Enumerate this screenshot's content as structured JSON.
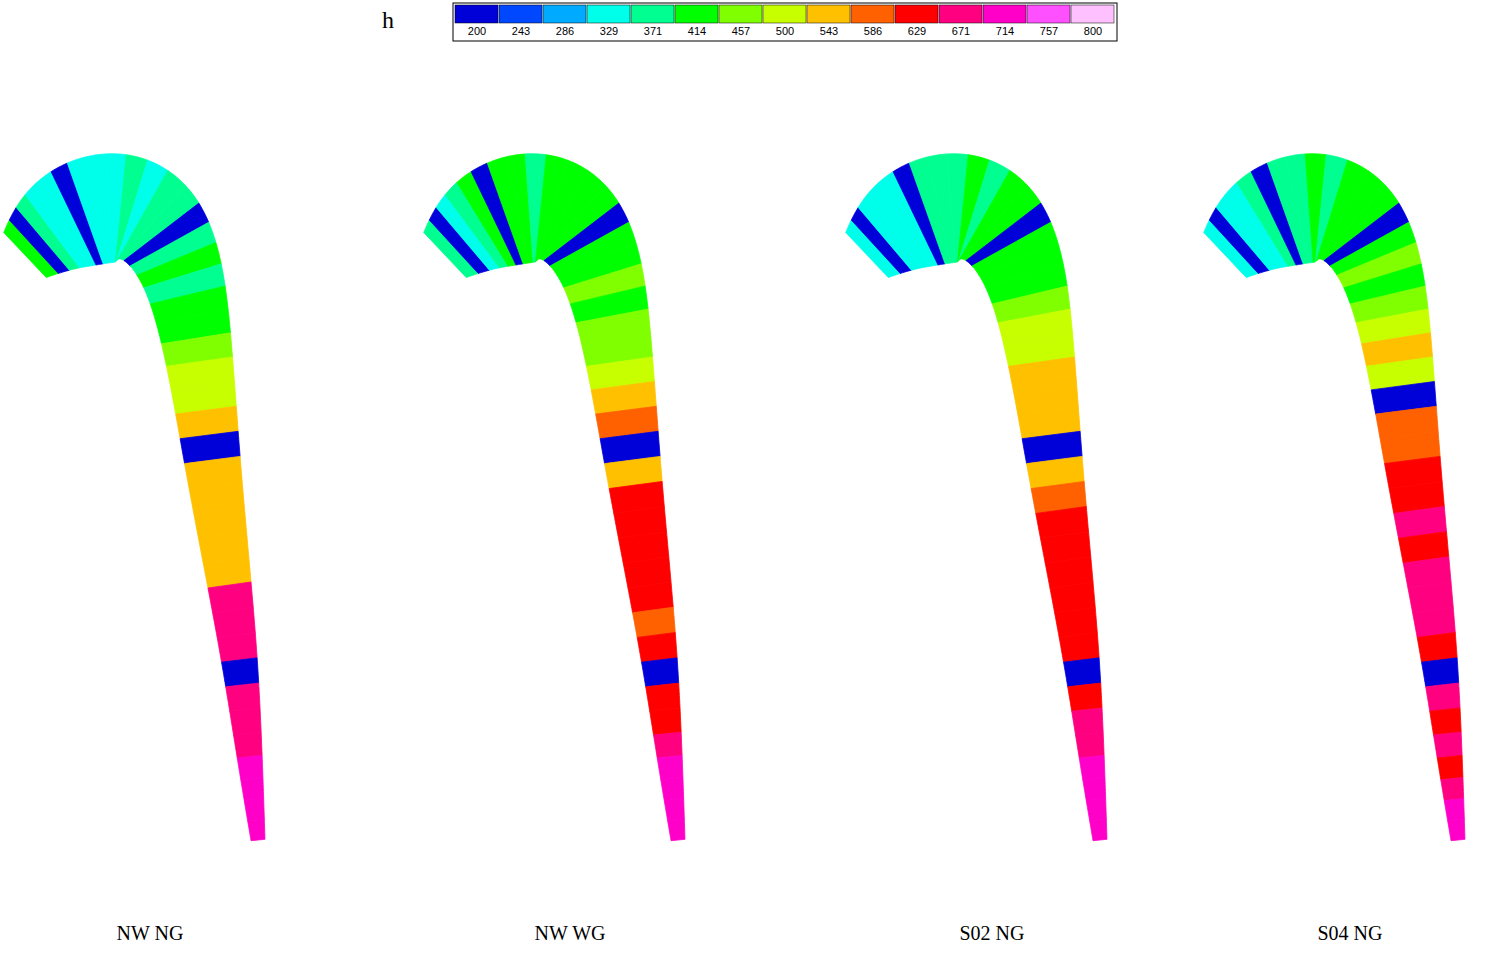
{
  "chart_data": {
    "type": "heatmap",
    "tick_labels": false,
    "colorbar": {
      "title": "h",
      "range": [
        200,
        800
      ],
      "ticks": [
        200,
        243,
        286,
        329,
        371,
        414,
        457,
        500,
        543,
        586,
        629,
        671,
        714,
        757,
        800
      ],
      "colors": [
        "#0000d8",
        "#0048ff",
        "#00aaff",
        "#00ffea",
        "#00ff90",
        "#00ff00",
        "#80ff00",
        "#c8ff00",
        "#ffc000",
        "#ff6000",
        "#ff0000",
        "#ff0080",
        "#ff00c8",
        "#ff50ff",
        "#ffc0ff"
      ]
    },
    "panels": [
      {
        "label": "NW NG",
        "values": [
          414,
          200,
          371,
          329,
          329,
          200,
          329,
          329,
          329,
          371,
          329,
          371,
          371,
          200,
          371,
          414,
          371,
          414,
          414,
          457,
          500,
          500,
          543,
          200,
          543,
          543,
          543,
          543,
          543,
          671,
          671,
          671,
          200,
          671,
          671,
          671,
          714,
          714,
          714,
          714
        ]
      },
      {
        "label": "NW WG",
        "values": [
          371,
          200,
          329,
          371,
          414,
          200,
          414,
          414,
          371,
          414,
          414,
          414,
          414,
          200,
          414,
          414,
          457,
          414,
          457,
          457,
          500,
          543,
          586,
          200,
          543,
          629,
          629,
          629,
          629,
          629,
          586,
          629,
          200,
          629,
          629,
          671,
          714,
          714,
          714,
          714
        ]
      },
      {
        "label": "S02 NG",
        "values": [
          329,
          200,
          329,
          329,
          329,
          200,
          371,
          371,
          371,
          414,
          371,
          414,
          414,
          200,
          414,
          414,
          414,
          457,
          500,
          500,
          543,
          543,
          543,
          200,
          543,
          586,
          629,
          629,
          629,
          629,
          629,
          629,
          200,
          629,
          671,
          671,
          714,
          714,
          714,
          714
        ]
      },
      {
        "label": "S04 NG",
        "values": [
          329,
          200,
          329,
          329,
          371,
          200,
          371,
          371,
          414,
          371,
          414,
          414,
          414,
          200,
          414,
          457,
          414,
          457,
          500,
          543,
          500,
          200,
          586,
          586,
          629,
          629,
          671,
          629,
          671,
          671,
          671,
          629,
          200,
          671,
          629,
          671,
          629,
          671,
          714,
          714
        ]
      }
    ]
  }
}
